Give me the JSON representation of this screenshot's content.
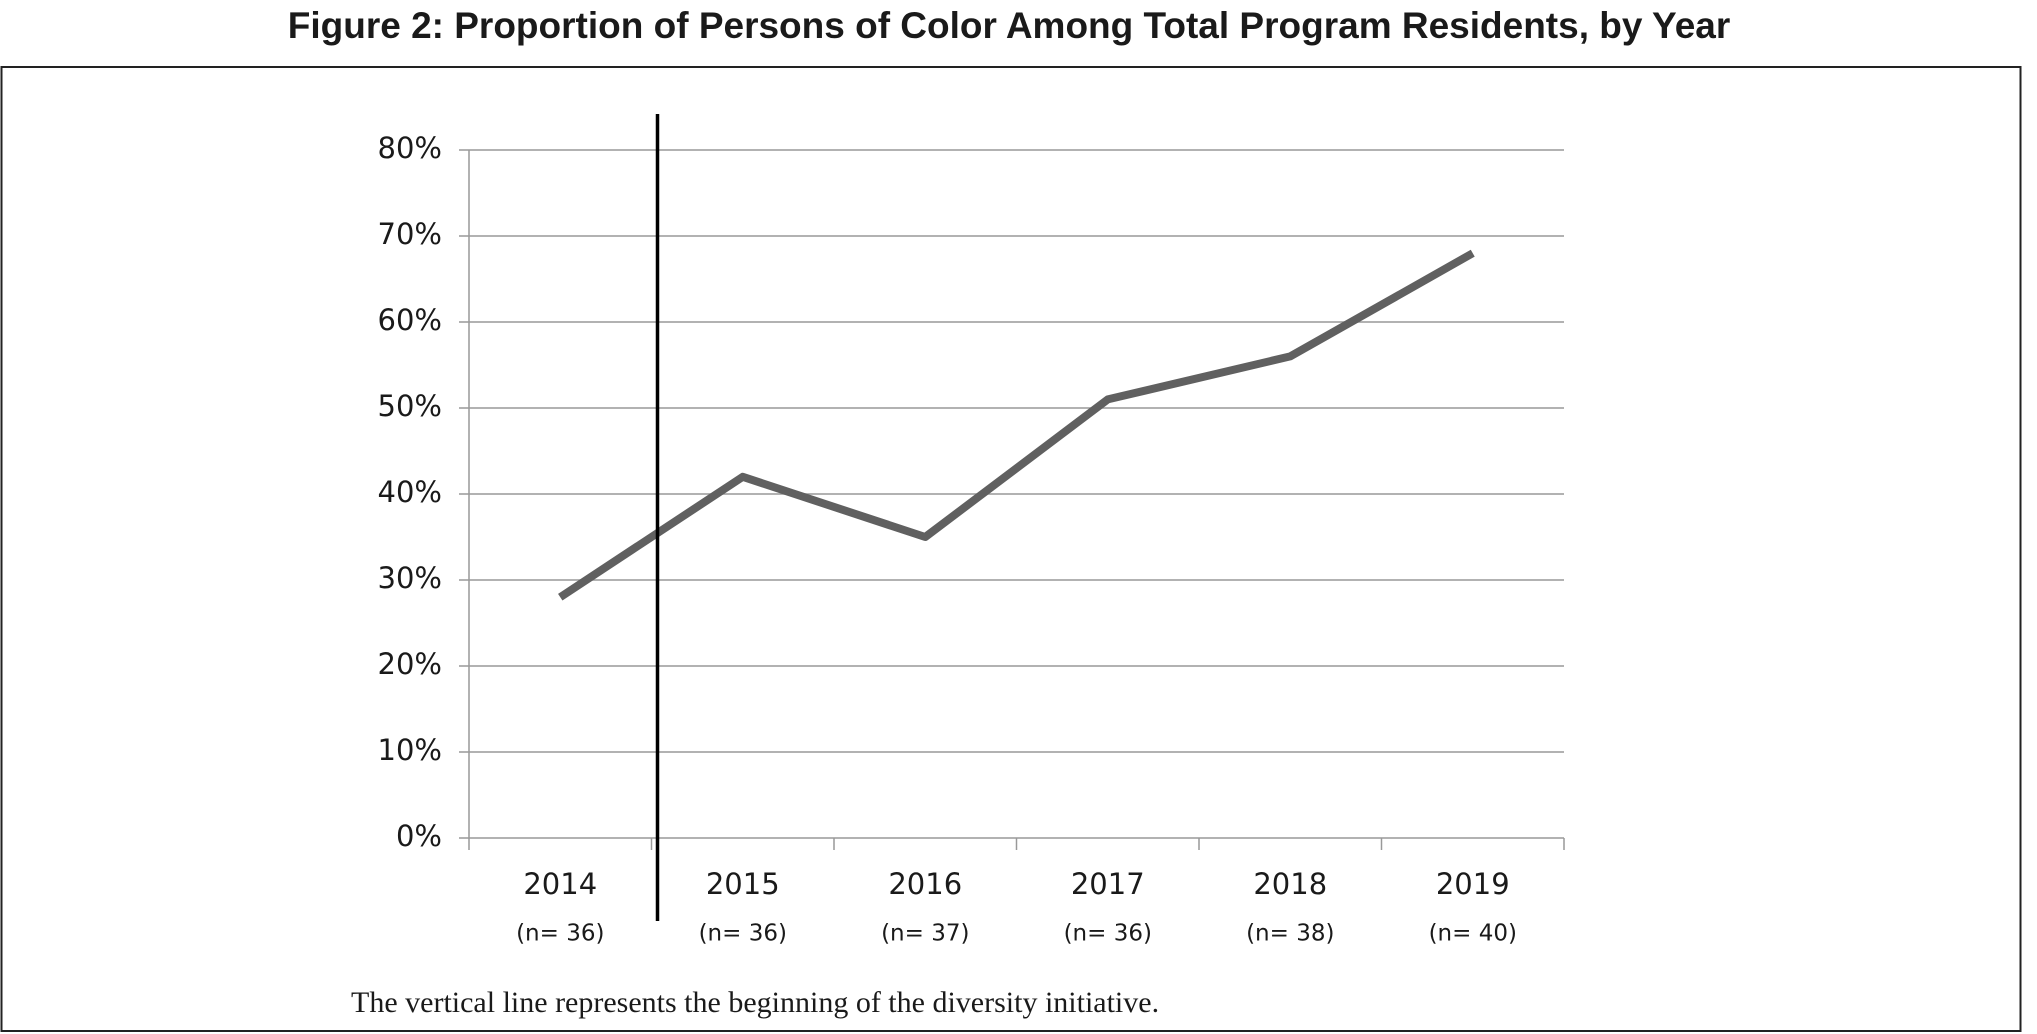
{
  "chart_data": {
    "type": "line",
    "title": "Figure 2: Proportion of Persons of Color Among Total Program Residents, by Year",
    "categories": [
      "2014",
      "2015",
      "2016",
      "2017",
      "2018",
      "2019"
    ],
    "sublabels": [
      "(n= 36)",
      "(n= 36)",
      "(n= 37)",
      "(n= 36)",
      "(n= 38)",
      "(n= 40)"
    ],
    "values": [
      28,
      42,
      35,
      51,
      56,
      68
    ],
    "color": "#606060",
    "ylim": [
      0,
      80
    ],
    "yticks": [
      {
        "value": 0,
        "label": "0%"
      },
      {
        "value": 10,
        "label": "10%"
      },
      {
        "value": 20,
        "label": "20%"
      },
      {
        "value": 30,
        "label": "30%"
      },
      {
        "value": 40,
        "label": "40%"
      },
      {
        "value": 50,
        "label": "50%"
      },
      {
        "value": 60,
        "label": "60%"
      },
      {
        "value": 70,
        "label": "70%"
      },
      {
        "value": 80,
        "label": "80%"
      }
    ],
    "grid": true,
    "note": "The vertical line represents the beginning of the diversity initiative."
  }
}
